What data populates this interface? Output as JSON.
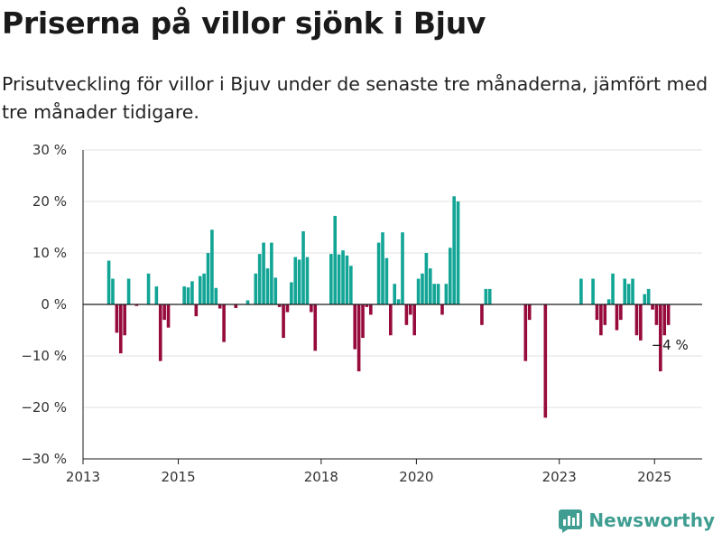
{
  "title": "Priserna på villor sjönk i Bjuv",
  "subtitle": "Prisutveckling för villor i Bjuv under de senaste tre månaderna, jämfört med tre månader tidigare.",
  "brand": {
    "name": "Newsworthy",
    "icon": "bar-chart-logo-icon"
  },
  "colors": {
    "positive": "#12a596",
    "negative": "#960a3c",
    "axis": "#1a1a1a",
    "grid": "#e2e2e2",
    "brand": "#3f9e91"
  },
  "chart_data": {
    "type": "bar",
    "xlim": [
      "2013-01",
      "2025-12"
    ],
    "ylim": [
      -30,
      30
    ],
    "y_ticks": [
      30,
      20,
      10,
      0,
      -10,
      -20,
      -30
    ],
    "y_tick_labels": [
      "30 %",
      "20 %",
      "10 %",
      "0 %",
      "−10 %",
      "−20 %",
      "−30 %"
    ],
    "x_ticks": [
      "2013-01",
      "2015-01",
      "2018-01",
      "2020-01",
      "2023-01",
      "2025-01"
    ],
    "x_tick_labels": [
      "2013",
      "2015",
      "2018",
      "2020",
      "2023",
      "2025"
    ],
    "grid": "horizontal",
    "annotation": {
      "x": "2025-04",
      "y": -4,
      "label": "−4 %"
    },
    "x": [
      "2013-07",
      "2013-08",
      "2013-09",
      "2013-10",
      "2013-11",
      "2013-12",
      "2014-01",
      "2014-02",
      "2014-03",
      "2014-04",
      "2014-05",
      "2014-06",
      "2014-07",
      "2014-08",
      "2014-09",
      "2014-10",
      "2014-11",
      "2014-12",
      "2015-01",
      "2015-02",
      "2015-03",
      "2015-04",
      "2015-05",
      "2015-06",
      "2015-07",
      "2015-08",
      "2015-09",
      "2015-10",
      "2015-11",
      "2015-12",
      "2016-01",
      "2016-02",
      "2016-03",
      "2016-04",
      "2016-05",
      "2016-06",
      "2016-07",
      "2016-08",
      "2016-09",
      "2016-10",
      "2016-11",
      "2016-12",
      "2017-01",
      "2017-02",
      "2017-03",
      "2017-04",
      "2017-05",
      "2017-06",
      "2017-07",
      "2017-08",
      "2017-09",
      "2017-10",
      "2017-11",
      "2017-12",
      "2018-01",
      "2018-02",
      "2018-03",
      "2018-04",
      "2018-05",
      "2018-06",
      "2018-07",
      "2018-08",
      "2018-09",
      "2018-10",
      "2018-11",
      "2018-12",
      "2019-01",
      "2019-02",
      "2019-03",
      "2019-04",
      "2019-05",
      "2019-06",
      "2019-07",
      "2019-08",
      "2019-09",
      "2019-10",
      "2019-11",
      "2019-12",
      "2020-01",
      "2020-02",
      "2020-03",
      "2020-04",
      "2020-05",
      "2020-06",
      "2020-07",
      "2020-08",
      "2020-09",
      "2020-10",
      "2020-11",
      "2020-12",
      "2021-01",
      "2021-02",
      "2021-03",
      "2021-04",
      "2021-05",
      "2021-06",
      "2021-07",
      "2021-08",
      "2021-09",
      "2021-10",
      "2021-11",
      "2021-12",
      "2022-01",
      "2022-02",
      "2022-03",
      "2022-04",
      "2022-05",
      "2022-06",
      "2022-07",
      "2022-08",
      "2022-09",
      "2022-10",
      "2022-11",
      "2022-12",
      "2023-01",
      "2023-02",
      "2023-03",
      "2023-04",
      "2023-05",
      "2023-06",
      "2023-07",
      "2023-08",
      "2023-09",
      "2023-10",
      "2023-11",
      "2023-12",
      "2024-01",
      "2024-02",
      "2024-03",
      "2024-04",
      "2024-05",
      "2024-06",
      "2024-07",
      "2024-08",
      "2024-09",
      "2024-10",
      "2024-11",
      "2024-12",
      "2025-01",
      "2025-02",
      "2025-03",
      "2025-04"
    ],
    "values": [
      8.5,
      5,
      -5.5,
      -9.5,
      -6,
      5,
      null,
      -0.3,
      null,
      null,
      6,
      null,
      3.5,
      -11,
      -3,
      -4.5,
      null,
      null,
      null,
      3.5,
      3.3,
      4.5,
      -2.3,
      5.5,
      6,
      10,
      14.5,
      3.2,
      -0.8,
      -7.3,
      null,
      null,
      -0.7,
      null,
      null,
      0.8,
      null,
      6,
      9.8,
      12,
      7,
      12,
      5.2,
      -0.5,
      -6.5,
      -1.5,
      4.3,
      9.2,
      8.7,
      14.2,
      9.2,
      -1.5,
      -9,
      null,
      null,
      null,
      9.8,
      17.2,
      9.7,
      10.5,
      9.5,
      7.5,
      -8.7,
      -13,
      -6.5,
      -0.5,
      -2,
      null,
      12,
      14,
      9,
      -6,
      4,
      1,
      14,
      -4,
      -2,
      -6,
      5,
      6,
      10,
      7,
      4,
      4,
      -2,
      4,
      11,
      21,
      20,
      null,
      null,
      null,
      null,
      null,
      -4,
      3,
      3,
      null,
      null,
      null,
      null,
      null,
      null,
      null,
      null,
      -11,
      -3,
      null,
      null,
      null,
      -22,
      null,
      null,
      null,
      null,
      null,
      null,
      null,
      null,
      5,
      null,
      null,
      5,
      -3,
      -6,
      -4,
      1,
      6,
      -5,
      -3,
      5,
      4,
      5,
      -6,
      -7,
      2,
      3,
      -1,
      -4,
      -13,
      -6,
      -4
    ]
  }
}
